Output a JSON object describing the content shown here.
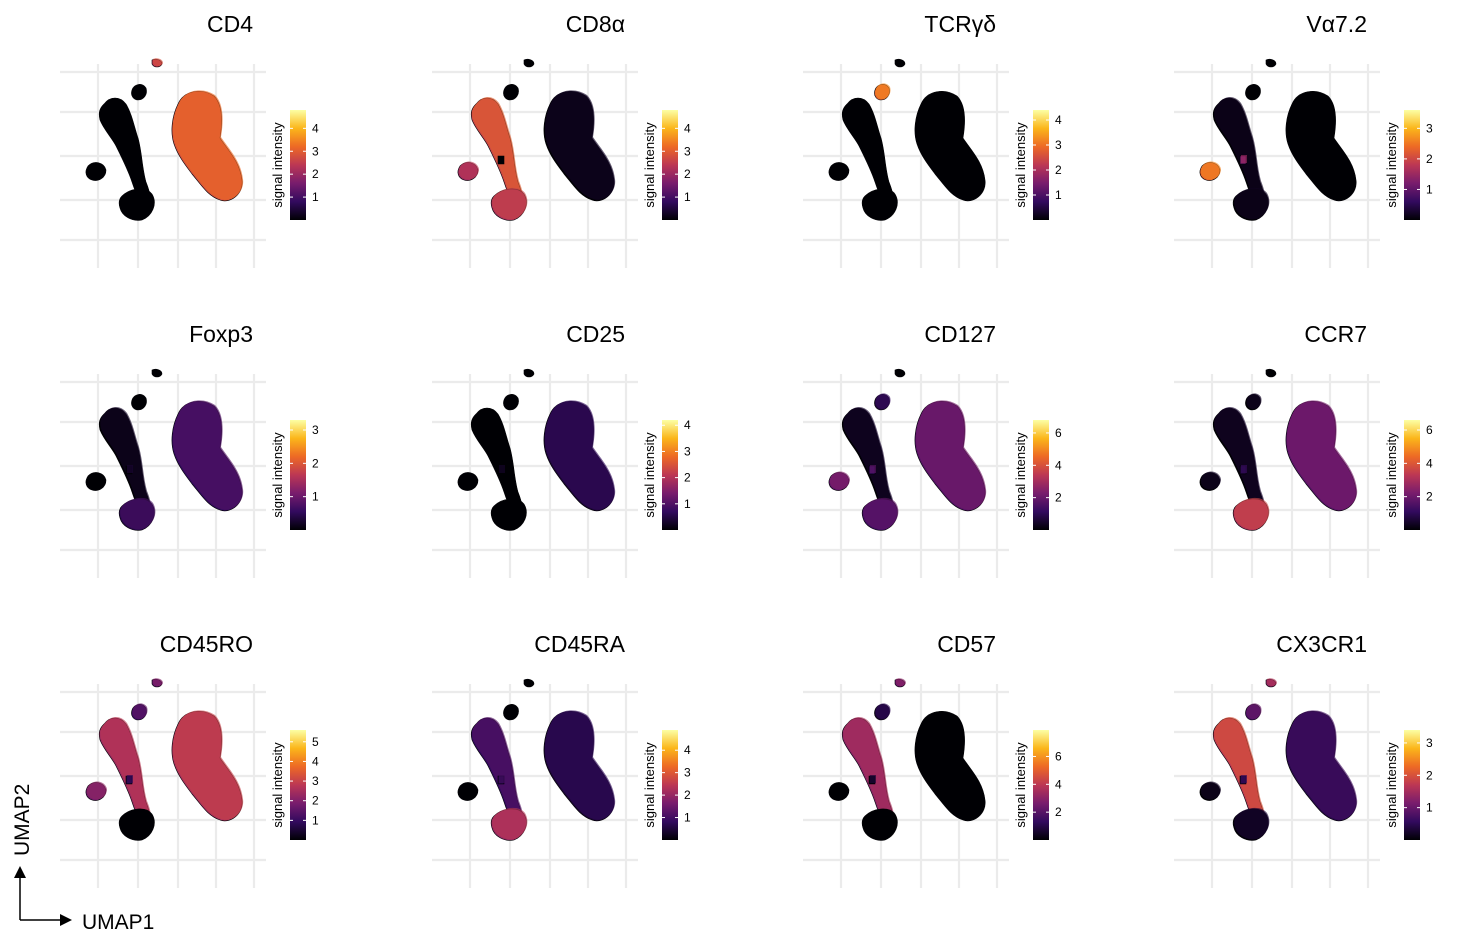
{
  "chart_data": {
    "type": "scatter",
    "layout": "4 columns x 3 rows of UMAP feature plots",
    "grid": true,
    "colormap": [
      "#000004",
      "#320a5e",
      "#781c6d",
      "#bc3754",
      "#ed6925",
      "#fbb61a",
      "#fcffa4"
    ],
    "axes": {
      "x_label": "UMAP1",
      "y_label": "UMAP2"
    },
    "panels": [
      {
        "title": "CD4",
        "colorbar_label": "signal intensity",
        "colorbar_ticks": [
          "4",
          "3",
          "2",
          "1"
        ],
        "colorbar_range": [
          0,
          4.8
        ],
        "cluster_levels": {
          "right_island": 3.2,
          "left_backbone": 0.1,
          "left_blob": 0.1,
          "bottom_blob": 0.1,
          "top_small": 2.8,
          "mid_small": 0.2,
          "left_top_blob": 0.1
        }
      },
      {
        "title": "CD8α",
        "colorbar_label": "signal intensity",
        "colorbar_ticks": [
          "4",
          "3",
          "2",
          "1"
        ],
        "colorbar_range": [
          0,
          4.8
        ],
        "cluster_levels": {
          "right_island": 0.3,
          "left_backbone": 3.0,
          "left_blob": 2.4,
          "bottom_blob": 2.6,
          "top_small": 0.1,
          "mid_small": 0.2,
          "left_top_blob": 0.1
        }
      },
      {
        "title": "TCRγδ",
        "colorbar_label": "signal intensity",
        "colorbar_ticks": [
          "4",
          "3",
          "2",
          "1"
        ],
        "colorbar_range": [
          0,
          4.4
        ],
        "cluster_levels": {
          "right_island": 0.2,
          "left_backbone": 0.1,
          "left_blob": 0.1,
          "bottom_blob": 0.1,
          "top_small": 0.1,
          "mid_small": 0.1,
          "left_top_blob": 3.2
        }
      },
      {
        "title": "Vα7.2",
        "colorbar_label": "signal intensity",
        "colorbar_ticks": [
          "3",
          "2",
          "1"
        ],
        "colorbar_range": [
          0,
          3.6
        ],
        "cluster_levels": {
          "right_island": 0.1,
          "left_backbone": 0.2,
          "left_blob": 2.6,
          "bottom_blob": 0.2,
          "top_small": 0.1,
          "mid_small": 1.5,
          "left_top_blob": 0.1
        }
      },
      {
        "title": "Foxp3",
        "colorbar_label": "signal intensity",
        "colorbar_ticks": [
          "3",
          "2",
          "1"
        ],
        "colorbar_range": [
          0,
          3.3
        ],
        "cluster_levels": {
          "right_island": 0.8,
          "left_backbone": 0.2,
          "left_blob": 0.1,
          "bottom_blob": 0.7,
          "top_small": 0.1,
          "mid_small": 0.3,
          "left_top_blob": 0.1
        }
      },
      {
        "title": "CD25",
        "colorbar_label": "signal intensity",
        "colorbar_ticks": [
          "4",
          "3",
          "2",
          "1"
        ],
        "colorbar_range": [
          0,
          4.2
        ],
        "cluster_levels": {
          "right_island": 0.7,
          "left_backbone": 0.1,
          "left_blob": 0.1,
          "bottom_blob": 0.2,
          "top_small": 0.1,
          "mid_small": 0.3,
          "left_top_blob": 0.1
        }
      },
      {
        "title": "CD127",
        "colorbar_label": "signal intensity",
        "colorbar_ticks": [
          "6",
          "4",
          "2"
        ],
        "colorbar_range": [
          0,
          6.8
        ],
        "cluster_levels": {
          "right_island": 2.2,
          "left_backbone": 0.5,
          "left_blob": 2.4,
          "bottom_blob": 1.9,
          "top_small": 0.3,
          "mid_small": 1.8,
          "left_top_blob": 1.2
        }
      },
      {
        "title": "CCR7",
        "colorbar_label": "signal intensity",
        "colorbar_ticks": [
          "6",
          "4",
          "2"
        ],
        "colorbar_range": [
          0,
          6.6
        ],
        "cluster_levels": {
          "right_island": 2.2,
          "left_backbone": 0.5,
          "left_blob": 0.4,
          "bottom_blob": 3.6,
          "top_small": 0.3,
          "mid_small": 1.2,
          "left_top_blob": 0.4
        }
      },
      {
        "title": "CD45RO",
        "colorbar_label": "signal intensity",
        "colorbar_ticks": [
          "5",
          "4",
          "3",
          "2",
          "1"
        ],
        "colorbar_range": [
          0,
          5.6
        ],
        "cluster_levels": {
          "right_island": 3.0,
          "left_backbone": 2.8,
          "left_blob": 2.2,
          "bottom_blob": 0.2,
          "top_small": 2.0,
          "mid_small": 1.0,
          "left_top_blob": 1.5
        }
      },
      {
        "title": "CD45RA",
        "colorbar_label": "signal intensity",
        "colorbar_ticks": [
          "4",
          "3",
          "2",
          "1"
        ],
        "colorbar_range": [
          0,
          4.9
        ],
        "cluster_levels": {
          "right_island": 0.8,
          "left_backbone": 1.2,
          "left_blob": 0.2,
          "bottom_blob": 2.4,
          "top_small": 0.2,
          "mid_small": 1.0,
          "left_top_blob": 0.2
        }
      },
      {
        "title": "CD57",
        "colorbar_label": "signal intensity",
        "colorbar_ticks": [
          "6",
          "4",
          "2"
        ],
        "colorbar_range": [
          0,
          7.9
        ],
        "cluster_levels": {
          "right_island": 0.3,
          "left_backbone": 3.6,
          "left_blob": 0.2,
          "bottom_blob": 0.3,
          "top_small": 3.0,
          "mid_small": 0.8,
          "left_top_blob": 1.2
        }
      },
      {
        "title": "CX3CR1",
        "colorbar_label": "signal intensity",
        "colorbar_ticks": [
          "3",
          "2",
          "1"
        ],
        "colorbar_range": [
          0,
          3.4
        ],
        "cluster_levels": {
          "right_island": 0.7,
          "left_backbone": 2.0,
          "left_blob": 0.2,
          "bottom_blob": 0.3,
          "top_small": 1.6,
          "mid_small": 0.6,
          "left_top_blob": 1.0
        }
      }
    ]
  }
}
